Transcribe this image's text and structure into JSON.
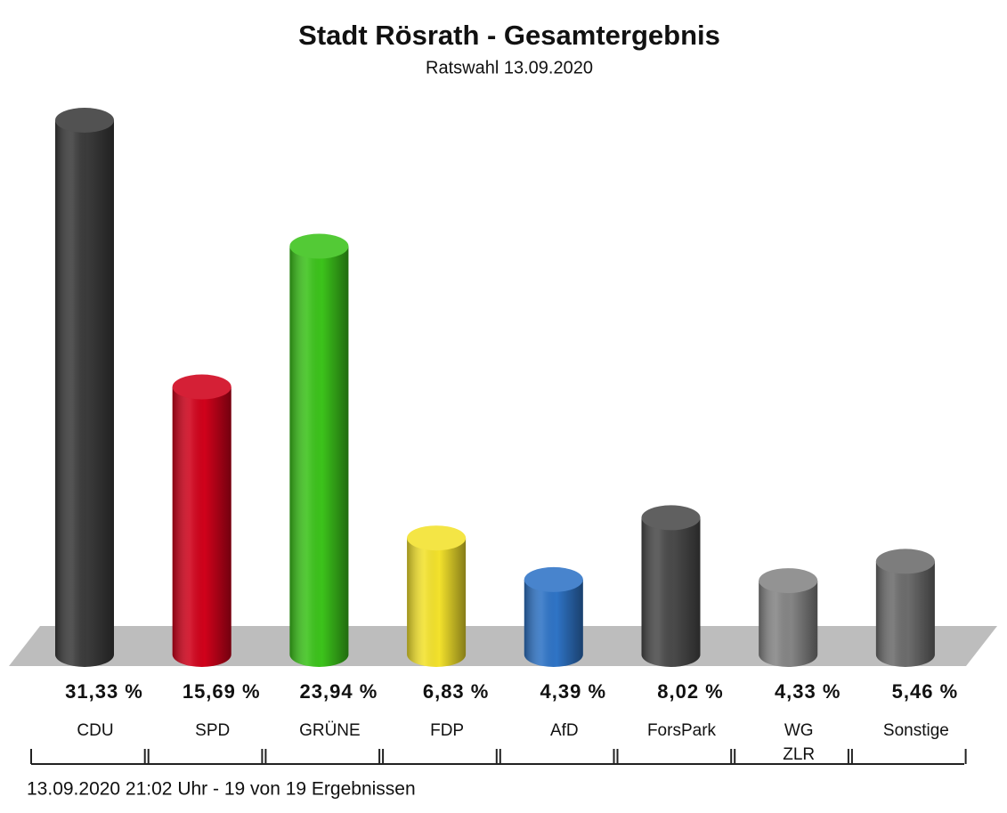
{
  "chart_data": {
    "type": "bar",
    "title": "Stadt Rösrath - Gesamtergebnis",
    "subtitle": "Ratswahl 13.09.2020",
    "categories": [
      "CDU",
      "SPD",
      "GRÜNE",
      "FDP",
      "AfD",
      "ForsPark",
      "WG\nZLR",
      "Sonstige"
    ],
    "values": [
      31.33,
      15.69,
      23.94,
      6.83,
      4.39,
      8.02,
      4.33,
      5.46
    ],
    "value_labels": [
      "31,33 %",
      "15,69 %",
      "23,94 %",
      "6,83 %",
      "4,39 %",
      "8,02 %",
      "4,33 %",
      "5,46 %"
    ],
    "colors": [
      "#3b3b3b",
      "#d0021b",
      "#3cc31b",
      "#f3e22c",
      "#2f74c6",
      "#4a4a4a",
      "#858585",
      "#6c6c6c"
    ],
    "footer": "13.09.2020 21:02 Uhr - 19 von 19 Ergebnissen"
  }
}
